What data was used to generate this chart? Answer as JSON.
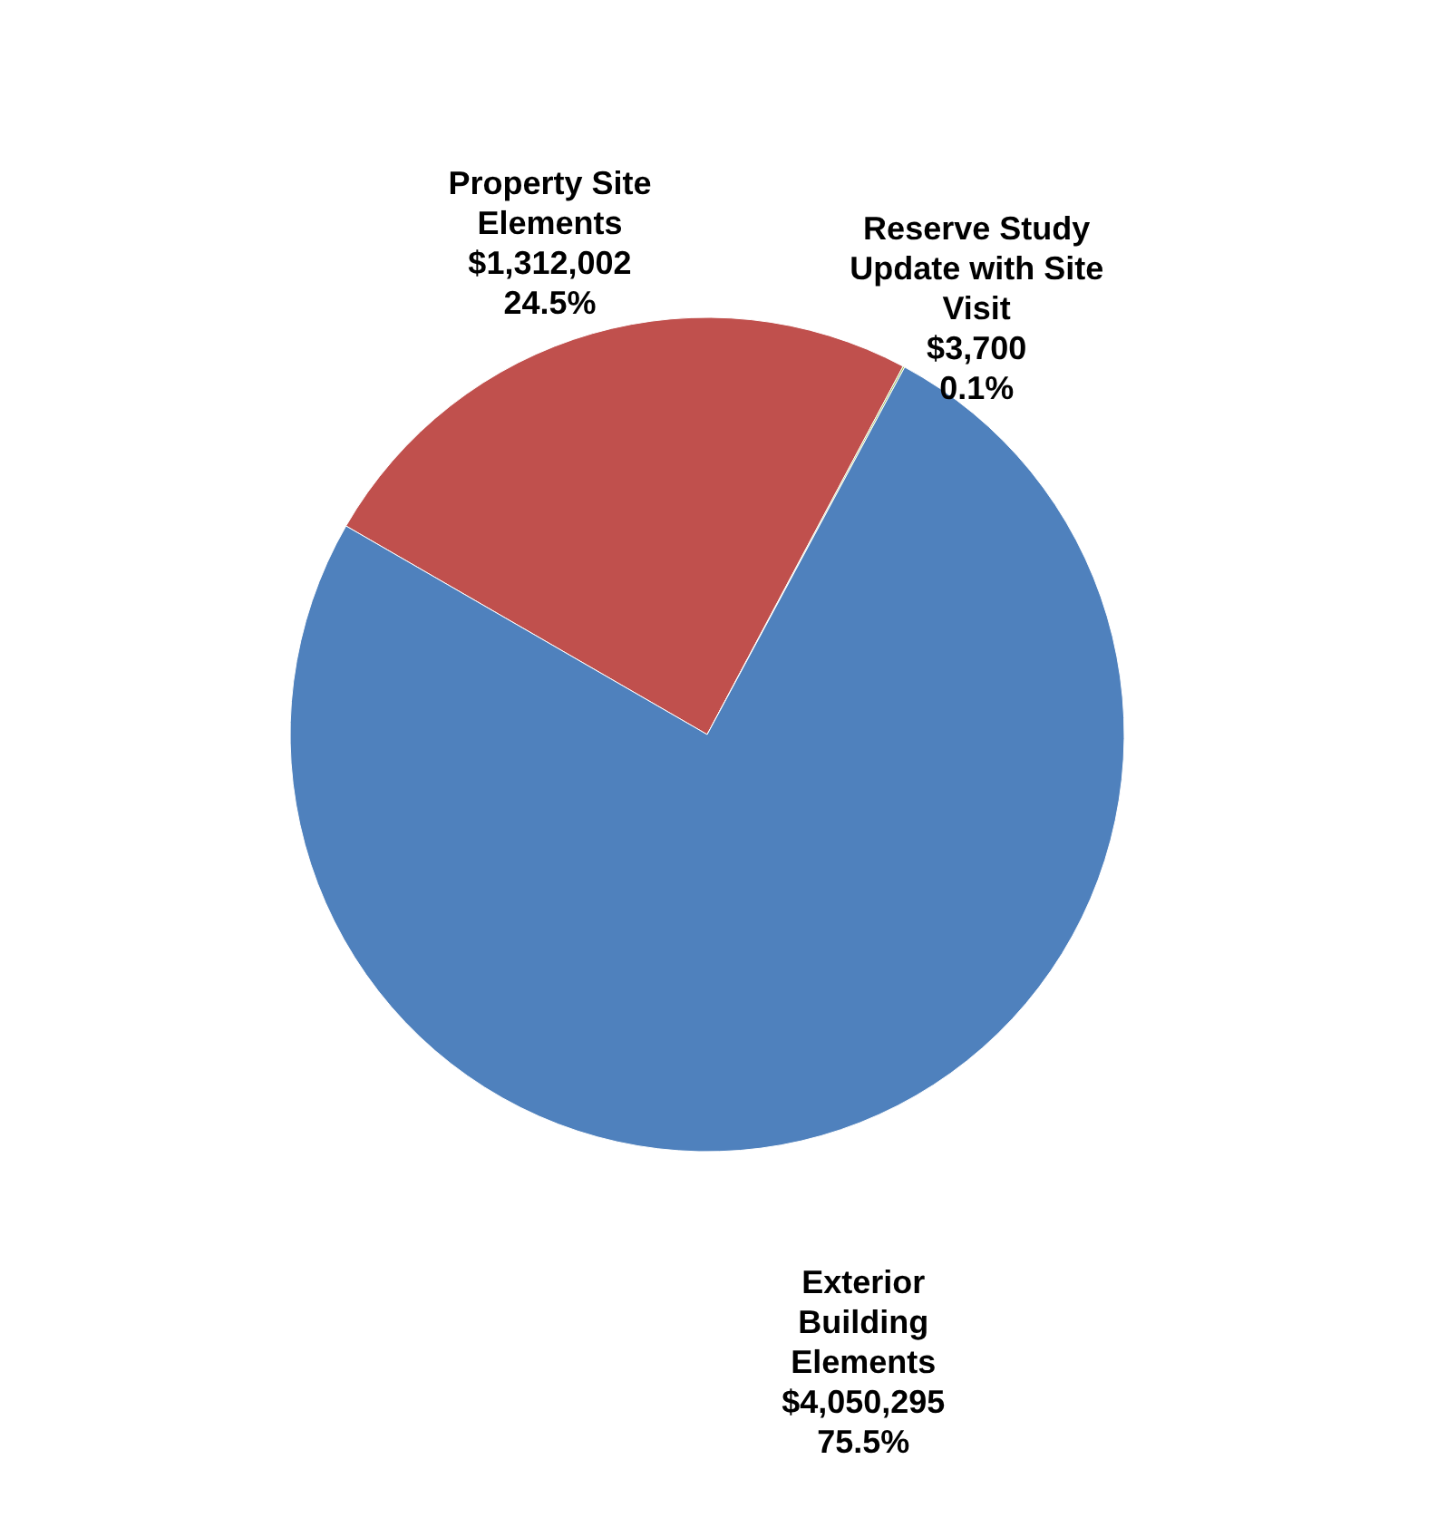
{
  "chart_data": {
    "type": "pie",
    "categories": [
      "Property Site Elements",
      "Reserve Study Update with Site Visit",
      "Exterior Building Elements"
    ],
    "values": [
      1312002,
      3700,
      4050295
    ],
    "colors": [
      "#c0504d",
      "#9bbb59",
      "#4f81bd"
    ],
    "value_labels": [
      "$1,312,002\n24.5%",
      "$3,700\n0.1%",
      "$4,050,295\n75.5%"
    ]
  }
}
